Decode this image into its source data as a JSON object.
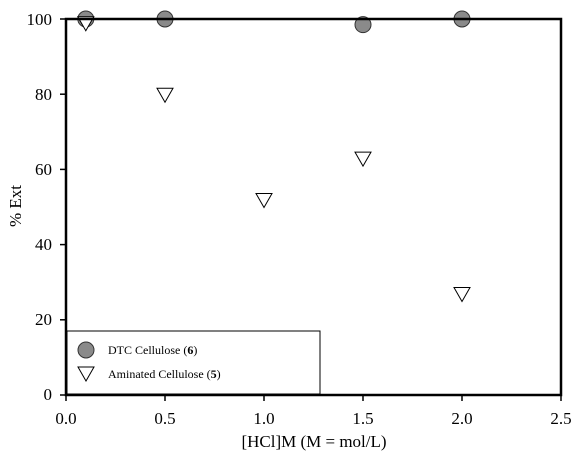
{
  "chart_data": {
    "type": "scatter",
    "title": "",
    "xlabel": "[HCl]M (M = mol/L)",
    "ylabel": "% Ext",
    "xlim": [
      0.0,
      2.5
    ],
    "ylim": [
      0,
      100
    ],
    "xticks": [
      "0.0",
      "0.5",
      "1.0",
      "1.5",
      "2.0",
      "2.5"
    ],
    "yticks": [
      "0",
      "20",
      "40",
      "60",
      "80",
      "100"
    ],
    "grid": false,
    "legend_position": "bottom-left",
    "series": [
      {
        "name": "DTC Cellulose",
        "name_suffix": "6",
        "marker": "circle",
        "color": "#8a8a8a",
        "x": [
          0.1,
          0.5,
          1.5,
          2.0
        ],
        "y": [
          100,
          100,
          98.5,
          100
        ]
      },
      {
        "name": "Aminated Cellulose",
        "name_suffix": "5",
        "marker": "triangle-down",
        "color": "#ffffff",
        "x": [
          0.1,
          0.5,
          1.0,
          1.5,
          2.0
        ],
        "y": [
          99,
          80,
          52,
          63,
          27
        ]
      }
    ]
  }
}
